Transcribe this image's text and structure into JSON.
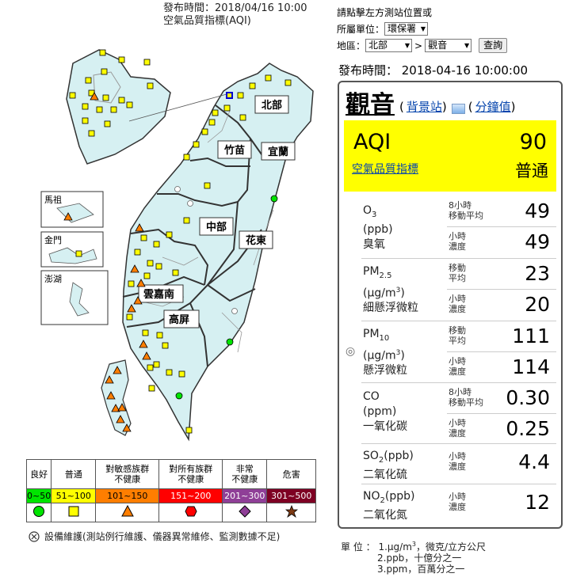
{
  "publish": {
    "line1": "發布時間：2018/04/16 10:00",
    "line2": "空氣品質指標(AQI)"
  },
  "controls": {
    "prompt": "請點擊左方測站位置或",
    "agency_label": "所屬單位：",
    "agency_value": "環保署",
    "region_label": "地區：",
    "region_value": "北部",
    "arrow": ">",
    "station_value": "觀音",
    "query_button": "查詢"
  },
  "publish_time": "發布時間： 2018-04-16 10:00:00",
  "station": {
    "name": "觀音",
    "background_link": "背景站",
    "minute_link": "分鐘值",
    "open_paren": "(",
    "close_paren": ")"
  },
  "aqi": {
    "label": "AQI",
    "value": "90",
    "sublabel": "空氣品質指標",
    "status": "普通",
    "color": "#ffff00"
  },
  "pollutants": [
    {
      "abbr": "O",
      "sub": "3",
      "unit": "(ppb)",
      "cname": "臭氧",
      "rows": [
        {
          "key": "8小時\n移動平均",
          "value": "49"
        },
        {
          "key": "小時\n濃度",
          "value": "49"
        }
      ]
    },
    {
      "abbr": "PM",
      "sub": "2.5",
      "unit": "(μg/m",
      "unit_sup": "3",
      "unit_end": ")",
      "cname": "細懸浮微粒",
      "rows": [
        {
          "key": "移動\n平均",
          "value": "23"
        },
        {
          "key": "小時\n濃度",
          "value": "20"
        }
      ]
    },
    {
      "abbr": "PM",
      "sub": "10",
      "unit": "(μg/m",
      "unit_sup": "3",
      "unit_end": ")",
      "cname": "懸浮微粒",
      "mark": "◎",
      "rows": [
        {
          "key": "移動\n平均",
          "value": "111"
        },
        {
          "key": "小時\n濃度",
          "value": "114"
        }
      ]
    },
    {
      "abbr": "CO",
      "unit": "(ppm)",
      "cname": "一氧化碳",
      "rows": [
        {
          "key": "8小時\n移動平均",
          "value": "0.30"
        },
        {
          "key": "小時\n濃度",
          "value": "0.25"
        }
      ]
    },
    {
      "abbr": "SO",
      "sub": "2",
      "unit": "(ppb)",
      "cname": "二氧化硫",
      "rows": [
        {
          "key": "小時\n濃度",
          "value": "4.4"
        }
      ]
    },
    {
      "abbr": "NO",
      "sub": "2",
      "unit": "(ppb)",
      "cname": "二氧化氮",
      "rows": [
        {
          "key": "小時\n濃度",
          "value": "12"
        }
      ]
    }
  ],
  "legend": {
    "categories": [
      {
        "label": "良好",
        "range": "0~50",
        "color": "#00e400",
        "shape": "circle",
        "text": "#000"
      },
      {
        "label": "普通",
        "range": "51~100",
        "color": "#ffff00",
        "shape": "square",
        "text": "#000"
      },
      {
        "label": "對敏感族群\n不健康",
        "range": "101~150",
        "color": "#ff7e00",
        "shape": "triangle",
        "text": "#000"
      },
      {
        "label": "對所有族群\n不健康",
        "range": "151~200",
        "color": "#ff0000",
        "shape": "hexagon",
        "text": "#fff"
      },
      {
        "label": "非常\n不健康",
        "range": "201~300",
        "color": "#8f3f97",
        "shape": "diamond",
        "text": "#fff"
      },
      {
        "label": "危害",
        "range": "301~500",
        "color": "#7e0023",
        "shape": "star",
        "text": "#fff"
      }
    ]
  },
  "note": "設備維護(測站例行維護、儀器異常維修、監測數據不足)",
  "units": {
    "title": "單 位 ：",
    "lines": [
      "1.μg/m",
      "2.ppb，十億分之一",
      "3.ppm，百萬分之一"
    ],
    "line1_sup": "3",
    "line1_end": "，微克/立方公尺"
  },
  "map": {
    "regions": [
      "北部",
      "竹苗",
      "宜蘭",
      "中部",
      "花東",
      "雲嘉南",
      "高屏"
    ],
    "insets": [
      "馬祖",
      "金門",
      "澎湖"
    ]
  }
}
